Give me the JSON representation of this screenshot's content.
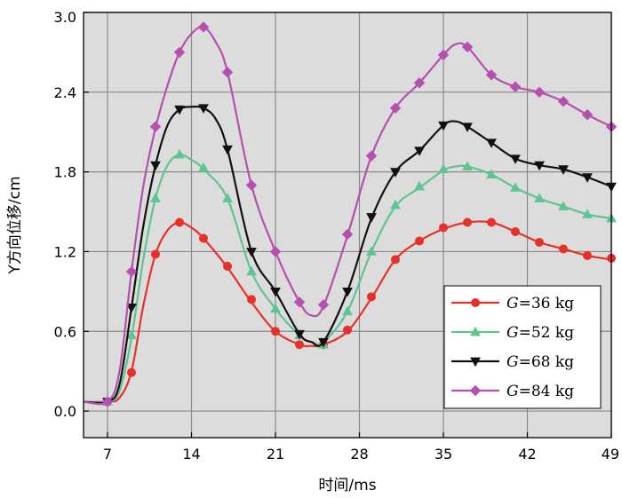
{
  "chart_data": {
    "type": "line",
    "title": "",
    "xlabel": "时间/ms",
    "ylabel": "Y方向位移/cm",
    "xlim": [
      5,
      49
    ],
    "ylim": [
      -0.2,
      3.0
    ],
    "xticks": [
      7,
      14,
      21,
      28,
      35,
      42,
      49
    ],
    "yticks": [
      0.0,
      0.6,
      1.2,
      1.8,
      2.4,
      3.0
    ],
    "xtick_labels": [
      "7",
      "14",
      "21",
      "28",
      "35",
      "42",
      "49"
    ],
    "ytick_labels": [
      "0.0",
      "0.6",
      "1.2",
      "1.8",
      "2.4",
      "3.0"
    ],
    "grid": true,
    "legend_position": "bottom-right",
    "series": [
      {
        "name": "G=36 kg",
        "label_var": "G",
        "label_rest": "=36 kg",
        "color": "#e8302b",
        "marker": "circle",
        "curve": [
          [
            5,
            0.07
          ],
          [
            7,
            0.07
          ],
          [
            8,
            0.1
          ],
          [
            9,
            0.3
          ],
          [
            10,
            0.8
          ],
          [
            11,
            1.18
          ],
          [
            12,
            1.36
          ],
          [
            13,
            1.42
          ],
          [
            14,
            1.38
          ],
          [
            15,
            1.3
          ],
          [
            17,
            1.08
          ],
          [
            19,
            0.82
          ],
          [
            21,
            0.6
          ],
          [
            23,
            0.5
          ],
          [
            24,
            0.49
          ],
          [
            25,
            0.5
          ],
          [
            27,
            0.6
          ],
          [
            29,
            0.85
          ],
          [
            31,
            1.14
          ],
          [
            33,
            1.28
          ],
          [
            35,
            1.37
          ],
          [
            37,
            1.42
          ],
          [
            39,
            1.42
          ],
          [
            41,
            1.35
          ],
          [
            43,
            1.27
          ],
          [
            45,
            1.22
          ],
          [
            47,
            1.17
          ],
          [
            49,
            1.14
          ]
        ],
        "markers": [
          [
            7,
            0.07
          ],
          [
            9,
            0.29
          ],
          [
            11,
            1.18
          ],
          [
            13,
            1.42
          ],
          [
            15,
            1.3
          ],
          [
            17,
            1.09
          ],
          [
            19,
            0.84
          ],
          [
            21,
            0.6
          ],
          [
            23,
            0.5
          ],
          [
            25,
            0.5
          ],
          [
            27,
            0.61
          ],
          [
            29,
            0.86
          ],
          [
            31,
            1.14
          ],
          [
            33,
            1.28
          ],
          [
            35,
            1.38
          ],
          [
            37,
            1.42
          ],
          [
            39,
            1.42
          ],
          [
            41,
            1.35
          ],
          [
            43,
            1.27
          ],
          [
            45,
            1.22
          ],
          [
            47,
            1.17
          ],
          [
            49,
            1.15
          ]
        ]
      },
      {
        "name": "G=52 kg",
        "label_var": "G",
        "label_rest": "=52 kg",
        "color": "#5ec490",
        "marker": "triangle-up",
        "curve": [
          [
            5,
            0.07
          ],
          [
            7,
            0.07
          ],
          [
            8,
            0.15
          ],
          [
            9,
            0.55
          ],
          [
            10,
            1.15
          ],
          [
            11,
            1.6
          ],
          [
            12,
            1.85
          ],
          [
            13,
            1.93
          ],
          [
            14,
            1.89
          ],
          [
            15,
            1.82
          ],
          [
            17,
            1.6
          ],
          [
            19,
            1.05
          ],
          [
            21,
            0.77
          ],
          [
            23,
            0.57
          ],
          [
            24,
            0.52
          ],
          [
            25,
            0.52
          ],
          [
            27,
            0.75
          ],
          [
            29,
            1.2
          ],
          [
            31,
            1.54
          ],
          [
            33,
            1.68
          ],
          [
            35,
            1.81
          ],
          [
            36,
            1.84
          ],
          [
            37,
            1.84
          ],
          [
            39,
            1.78
          ],
          [
            41,
            1.68
          ],
          [
            43,
            1.6
          ],
          [
            45,
            1.54
          ],
          [
            47,
            1.48
          ],
          [
            49,
            1.45
          ]
        ],
        "markers": [
          [
            7,
            0.07
          ],
          [
            9,
            0.57
          ],
          [
            11,
            1.6
          ],
          [
            13,
            1.93
          ],
          [
            15,
            1.83
          ],
          [
            17,
            1.6
          ],
          [
            19,
            1.05
          ],
          [
            21,
            0.77
          ],
          [
            23,
            0.57
          ],
          [
            25,
            0.5
          ],
          [
            27,
            0.75
          ],
          [
            29,
            1.2
          ],
          [
            31,
            1.55
          ],
          [
            33,
            1.69
          ],
          [
            35,
            1.82
          ],
          [
            37,
            1.84
          ],
          [
            39,
            1.78
          ],
          [
            41,
            1.68
          ],
          [
            43,
            1.6
          ],
          [
            45,
            1.54
          ],
          [
            47,
            1.48
          ],
          [
            49,
            1.45
          ]
        ]
      },
      {
        "name": "G=68 kg",
        "label_var": "G",
        "label_rest": "=68 kg",
        "color": "#111111",
        "marker": "triangle-down",
        "curve": [
          [
            5,
            0.07
          ],
          [
            7,
            0.07
          ],
          [
            8,
            0.2
          ],
          [
            9,
            0.78
          ],
          [
            10,
            1.4
          ],
          [
            11,
            1.85
          ],
          [
            12,
            2.15
          ],
          [
            13,
            2.27
          ],
          [
            14,
            2.29
          ],
          [
            15,
            2.28
          ],
          [
            16,
            2.2
          ],
          [
            17,
            1.97
          ],
          [
            19,
            1.2
          ],
          [
            21,
            0.9
          ],
          [
            23,
            0.58
          ],
          [
            24,
            0.52
          ],
          [
            25,
            0.52
          ],
          [
            27,
            0.9
          ],
          [
            29,
            1.45
          ],
          [
            31,
            1.8
          ],
          [
            33,
            1.96
          ],
          [
            35,
            2.15
          ],
          [
            36,
            2.18
          ],
          [
            37,
            2.14
          ],
          [
            39,
            2.02
          ],
          [
            41,
            1.9
          ],
          [
            43,
            1.85
          ],
          [
            45,
            1.82
          ],
          [
            47,
            1.76
          ],
          [
            49,
            1.69
          ]
        ],
        "markers": [
          [
            7,
            0.07
          ],
          [
            9,
            0.78
          ],
          [
            11,
            1.85
          ],
          [
            13,
            2.27
          ],
          [
            15,
            2.28
          ],
          [
            17,
            1.97
          ],
          [
            19,
            1.2
          ],
          [
            21,
            0.9
          ],
          [
            23,
            0.58
          ],
          [
            25,
            0.52
          ],
          [
            27,
            0.9
          ],
          [
            29,
            1.46
          ],
          [
            31,
            1.8
          ],
          [
            33,
            1.96
          ],
          [
            35,
            2.15
          ],
          [
            37,
            2.14
          ],
          [
            39,
            2.02
          ],
          [
            41,
            1.9
          ],
          [
            43,
            1.85
          ],
          [
            45,
            1.82
          ],
          [
            47,
            1.76
          ],
          [
            49,
            1.69
          ]
        ]
      },
      {
        "name": "G=84 kg",
        "label_var": "G",
        "label_rest": "=84 kg",
        "color": "#b64fae",
        "marker": "diamond",
        "curve": [
          [
            5,
            0.07
          ],
          [
            7,
            0.07
          ],
          [
            8,
            0.3
          ],
          [
            9,
            1.05
          ],
          [
            10,
            1.7
          ],
          [
            11,
            2.13
          ],
          [
            12,
            2.45
          ],
          [
            13,
            2.7
          ],
          [
            14,
            2.84
          ],
          [
            15,
            2.89
          ],
          [
            16,
            2.78
          ],
          [
            17,
            2.55
          ],
          [
            19,
            1.7
          ],
          [
            21,
            1.2
          ],
          [
            23,
            0.82
          ],
          [
            24,
            0.72
          ],
          [
            25,
            0.79
          ],
          [
            27,
            1.32
          ],
          [
            29,
            1.92
          ],
          [
            31,
            2.28
          ],
          [
            33,
            2.47
          ],
          [
            35,
            2.68
          ],
          [
            36,
            2.76
          ],
          [
            37,
            2.74
          ],
          [
            39,
            2.53
          ],
          [
            41,
            2.44
          ],
          [
            43,
            2.4
          ],
          [
            45,
            2.33
          ],
          [
            47,
            2.23
          ],
          [
            49,
            2.14
          ]
        ],
        "markers": [
          [
            7,
            0.07
          ],
          [
            9,
            1.05
          ],
          [
            11,
            2.14
          ],
          [
            13,
            2.7
          ],
          [
            15,
            2.89
          ],
          [
            17,
            2.55
          ],
          [
            19,
            1.7
          ],
          [
            21,
            1.2
          ],
          [
            23,
            0.82
          ],
          [
            25,
            0.8
          ],
          [
            27,
            1.33
          ],
          [
            29,
            1.92
          ],
          [
            31,
            2.28
          ],
          [
            33,
            2.47
          ],
          [
            35,
            2.68
          ],
          [
            37,
            2.74
          ],
          [
            39,
            2.53
          ],
          [
            41,
            2.44
          ],
          [
            43,
            2.4
          ],
          [
            45,
            2.33
          ],
          [
            47,
            2.23
          ],
          [
            49,
            2.14
          ]
        ]
      }
    ]
  }
}
